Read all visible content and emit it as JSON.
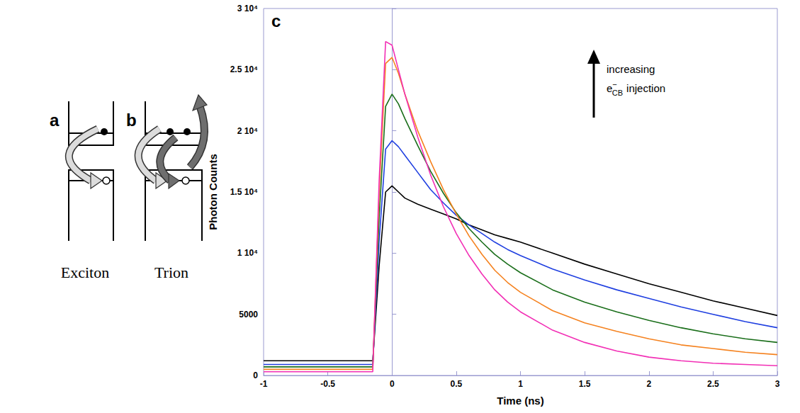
{
  "panels": [
    {
      "letter": "a",
      "caption": "Exciton"
    },
    {
      "letter": "b",
      "caption": "Trion"
    }
  ],
  "chart_data": {
    "type": "line",
    "title": "c",
    "x_label": "Time (ns)",
    "y_label": "Photon Counts",
    "annotation": {
      "text": "increasing",
      "species": "e",
      "charge": "−",
      "band": "CB",
      "rest": "injection"
    },
    "x": [
      -1,
      -0.5,
      -0.2,
      -0.15,
      -0.1,
      -0.05,
      0,
      0.05,
      0.1,
      0.2,
      0.3,
      0.4,
      0.5,
      0.6,
      0.7,
      0.8,
      0.9,
      1.0,
      1.25,
      1.5,
      1.75,
      2.0,
      2.25,
      2.5,
      2.75,
      3.0
    ],
    "series": [
      {
        "color": "#000000",
        "values": [
          1200,
          1200,
          1200,
          1200,
          9000,
          15000,
          15500,
          15000,
          14500,
          14000,
          13600,
          13200,
          12800,
          12300,
          11900,
          11500,
          11200,
          10900,
          10000,
          9100,
          8300,
          7500,
          6800,
          6100,
          5500,
          4900
        ]
      },
      {
        "color": "#1f3fe0",
        "values": [
          900,
          900,
          900,
          900,
          11000,
          18500,
          19200,
          18700,
          18000,
          16600,
          15200,
          14100,
          13100,
          12300,
          11600,
          10900,
          10300,
          9800,
          8700,
          7800,
          7000,
          6300,
          5600,
          5000,
          4400,
          3900
        ]
      },
      {
        "color": "#1a6e1a",
        "values": [
          700,
          700,
          700,
          700,
          13000,
          22000,
          23000,
          22200,
          21000,
          18800,
          16700,
          14900,
          13300,
          12000,
          10900,
          9900,
          9100,
          8400,
          7000,
          6000,
          5200,
          4500,
          3900,
          3400,
          3000,
          2700
        ]
      },
      {
        "color": "#f5821f",
        "values": [
          500,
          500,
          500,
          500,
          15000,
          25500,
          26000,
          24700,
          23000,
          20000,
          17500,
          15200,
          13200,
          11400,
          9900,
          8600,
          7600,
          6800,
          5300,
          4300,
          3600,
          3000,
          2500,
          2200,
          1900,
          1700
        ]
      },
      {
        "color": "#f22fb5",
        "values": [
          300,
          300,
          300,
          300,
          16000,
          27300,
          27000,
          25000,
          23000,
          19500,
          16400,
          13800,
          11600,
          9800,
          8300,
          7000,
          6000,
          5200,
          3700,
          2700,
          2000,
          1500,
          1200,
          1000,
          900,
          800
        ]
      }
    ],
    "xlim": [
      -1,
      3
    ],
    "xticks": [
      -1,
      -0.5,
      0,
      0.5,
      1,
      1.5,
      2,
      2.5,
      3
    ],
    "ylim": [
      0,
      30000
    ],
    "yticks": [
      0,
      5000,
      {
        "value": 10000,
        "label": "1 10⁴"
      },
      {
        "value": 15000,
        "label": "1.5 10⁴"
      },
      {
        "value": 20000,
        "label": "2 10⁴"
      },
      {
        "value": 25000,
        "label": "2.5 10⁴"
      },
      {
        "value": 30000,
        "label": "3 10⁴"
      }
    ],
    "grid": false
  }
}
